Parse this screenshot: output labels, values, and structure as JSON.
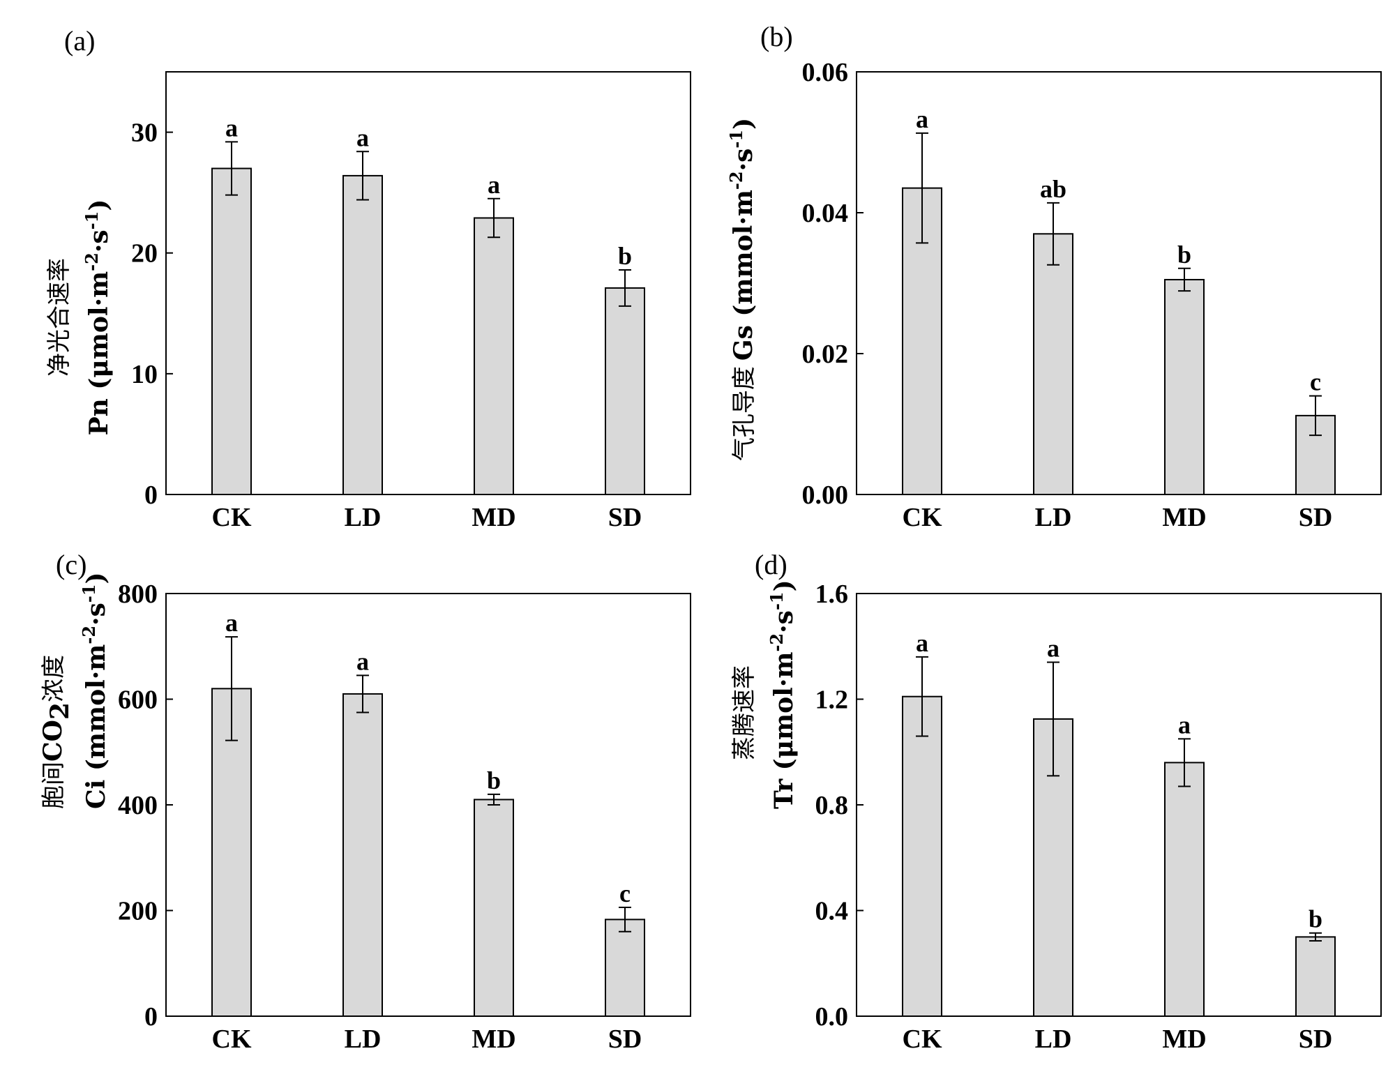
{
  "chart_data": [
    {
      "type": "bar",
      "panel_label": "(a)",
      "categories": [
        "CK",
        "LD",
        "MD",
        "SD"
      ],
      "values": [
        27.0,
        26.4,
        22.9,
        17.1
      ],
      "errors": [
        2.2,
        2.0,
        1.6,
        1.5
      ],
      "significance": [
        "a",
        "a",
        "a",
        "b"
      ],
      "ylim": [
        0,
        35
      ],
      "yticks": [
        0,
        10,
        20,
        30
      ],
      "ytick_labels": [
        "0",
        "10",
        "20",
        "30"
      ],
      "ylabel_cn": "净光合速率",
      "ylabel_pre": "Pn (μmol·m",
      "ylabel_exp1": "-2",
      "ylabel_mid": "·s",
      "ylabel_exp2": "-1",
      "ylabel_post": ")"
    },
    {
      "type": "bar",
      "panel_label": "(b)",
      "categories": [
        "CK",
        "LD",
        "MD",
        "SD"
      ],
      "values": [
        0.0435,
        0.037,
        0.0305,
        0.0112
      ],
      "errors": [
        0.0078,
        0.0044,
        0.0016,
        0.0028
      ],
      "significance": [
        "a",
        "ab",
        "b",
        "c"
      ],
      "ylim": [
        0,
        0.06
      ],
      "yticks": [
        0,
        0.02,
        0.04,
        0.06
      ],
      "ytick_labels": [
        "0.00",
        "0.02",
        "0.04",
        "0.06"
      ],
      "ylabel_cn": "气孔导度",
      "ylabel_pre": "Gs (mmol·m",
      "ylabel_exp1": "-2",
      "ylabel_mid": "·s",
      "ylabel_exp2": "-1",
      "ylabel_post": ")"
    },
    {
      "type": "bar",
      "panel_label": "(c)",
      "categories": [
        "CK",
        "LD",
        "MD",
        "SD"
      ],
      "values": [
        620,
        610,
        410,
        183
      ],
      "errors": [
        98,
        35,
        10,
        23
      ],
      "significance": [
        "a",
        "a",
        "b",
        "c"
      ],
      "ylim": [
        0,
        800
      ],
      "yticks": [
        0,
        200,
        400,
        600,
        800
      ],
      "ytick_labels": [
        "0",
        "200",
        "400",
        "600",
        "800"
      ],
      "ylabel_cn": "胞间",
      "ylabel_cn_chem": "CO",
      "ylabel_cn_sub": "2",
      "ylabel_cn_post": "浓度",
      "ylabel_pre": "Ci (mmol·m",
      "ylabel_exp1": "-2",
      "ylabel_mid": "·s",
      "ylabel_exp2": "-1",
      "ylabel_post": ")"
    },
    {
      "type": "bar",
      "panel_label": "(d)",
      "categories": [
        "CK",
        "LD",
        "MD",
        "SD"
      ],
      "values": [
        1.21,
        1.125,
        0.96,
        0.3
      ],
      "errors": [
        0.15,
        0.215,
        0.09,
        0.015
      ],
      "significance": [
        "a",
        "a",
        "a",
        "b"
      ],
      "ylim": [
        0,
        1.6
      ],
      "yticks": [
        0,
        0.4,
        0.8,
        1.2,
        1.6
      ],
      "ytick_labels": [
        "0.0",
        "0.4",
        "0.8",
        "1.2",
        "1.6"
      ],
      "ylabel_cn": "蒸腾速率",
      "ylabel_pre": "Tr (μmol·m",
      "ylabel_exp1": "-2",
      "ylabel_mid": "·s",
      "ylabel_exp2": "-1",
      "ylabel_post": ")"
    }
  ]
}
